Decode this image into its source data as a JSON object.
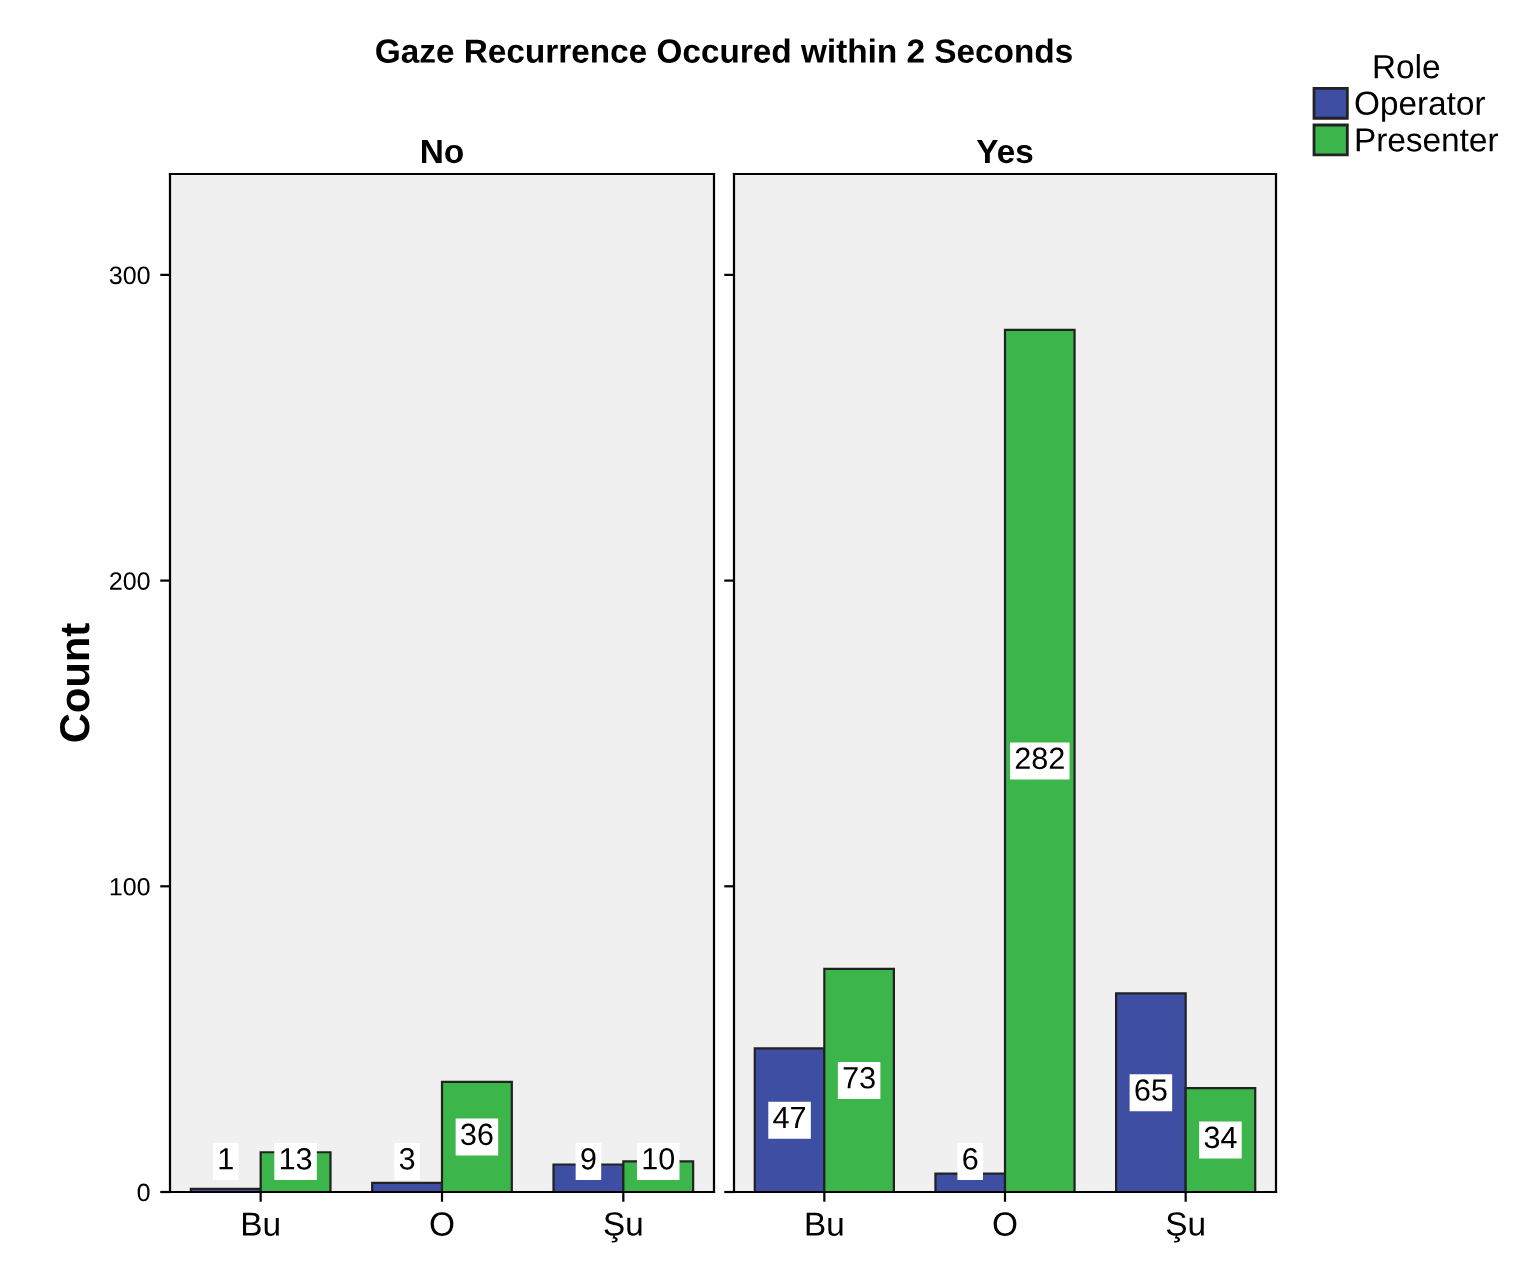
{
  "chart_data": [
    {
      "type": "bar",
      "title": "Gaze Recurrence Occured within 2 Seconds",
      "subtitle": "No",
      "ylabel": "Count",
      "legend_title": "Role",
      "legend": "right",
      "categories": [
        "Bu",
        "O",
        "Şu"
      ],
      "series": [
        {
          "name": "Operator",
          "color": "#3e4fa3",
          "values": [
            1,
            3,
            9
          ]
        },
        {
          "name": "Presenter",
          "color": "#3cb54a",
          "values": [
            13,
            36,
            10
          ]
        }
      ],
      "ylim": [
        0,
        333
      ],
      "yticks": [
        0,
        100,
        200,
        300
      ],
      "data_labels": true,
      "grid": false
    },
    {
      "type": "bar",
      "subtitle": "Yes",
      "categories": [
        "Bu",
        "O",
        "Şu"
      ],
      "series": [
        {
          "color": "#3e4fa3",
          "values": [
            47,
            6,
            65
          ]
        },
        {
          "color": "#3cb54a",
          "values": [
            73,
            282,
            34
          ]
        }
      ],
      "ylim": [
        0,
        333
      ],
      "yticks": [
        0,
        100,
        200,
        300
      ],
      "tick_labels": "x",
      "data_labels": true,
      "grid": false
    }
  ]
}
